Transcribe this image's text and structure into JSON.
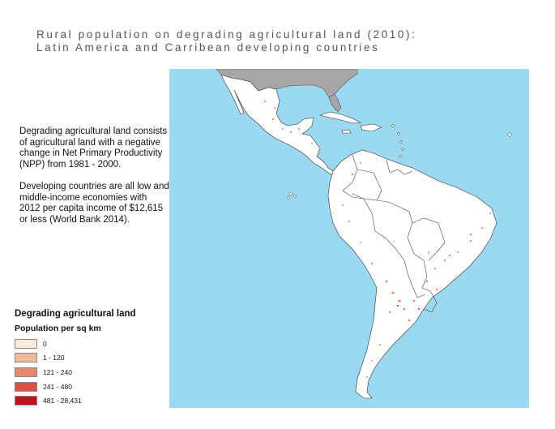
{
  "title": {
    "line1": "Rural population on degrading agricultural land (2010):",
    "line2": "Latin America and Carribean developing countries"
  },
  "description": {
    "para1": "Degrading agricultural land consists of agricultural land with a negative change in Net Primary Productivity (NPP) from 1981 - 2000.",
    "para2": "Developing countries are all low and middle-income economies with 2012 per capita income of $12,615 or less (World Bank 2014)."
  },
  "legend": {
    "title": "Degrading agricultural land",
    "subtitle": "Population per sq km",
    "items": [
      {
        "label": "0",
        "color": "#fde9d9"
      },
      {
        "label": "1 - 120",
        "color": "#f2b89a"
      },
      {
        "label": "121 - 240",
        "color": "#e88769"
      },
      {
        "label": "241 - 480",
        "color": "#d9513f"
      },
      {
        "label": "481 - 28,431",
        "color": "#c0101a"
      }
    ]
  },
  "map": {
    "ocean_color": "#9ad9f0",
    "land_color": "#ffffff",
    "no_data_color": "#a6a6a6",
    "border_color": "#333333"
  }
}
